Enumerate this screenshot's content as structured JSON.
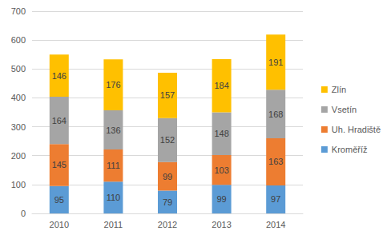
{
  "chart_data": {
    "type": "bar",
    "stacked": true,
    "data_labels": true,
    "grid": true,
    "legend": "right",
    "categories": [
      "2010",
      "2011",
      "2012",
      "2013",
      "2014"
    ],
    "series": [
      {
        "name": "Kroměříž",
        "color": "#5b9bd5",
        "values": [
          95,
          110,
          79,
          99,
          97
        ]
      },
      {
        "name": "Uh. Hradiště",
        "color": "#ed7d31",
        "values": [
          145,
          111,
          99,
          103,
          163
        ]
      },
      {
        "name": "Vsetín",
        "color": "#a5a5a5",
        "values": [
          164,
          136,
          152,
          148,
          168
        ]
      },
      {
        "name": "Zlín",
        "color": "#ffc000",
        "values": [
          146,
          176,
          157,
          184,
          191
        ]
      }
    ],
    "ylim": [
      0,
      700
    ],
    "yticks": [
      0,
      100,
      200,
      300,
      400,
      500,
      600,
      700
    ]
  }
}
